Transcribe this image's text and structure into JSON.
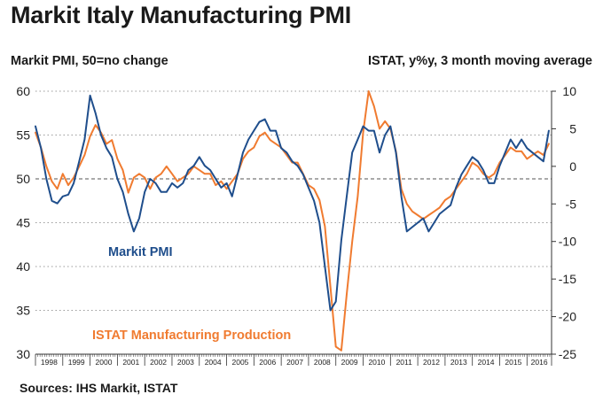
{
  "title": "Markit Italy Manufacturing PMI",
  "left_axis_label": "Markit PMI, 50=no change",
  "right_axis_label": "ISTAT, y%y, 3 month moving average",
  "source": "Sources: IHS Markit, ISTAT",
  "colors": {
    "pmi": "#1f4e8c",
    "istat": "#f07b30",
    "grid": "#9a9a9a",
    "axis": "#333333"
  },
  "chart_data": {
    "type": "line",
    "title": "Markit Italy Manufacturing PMI",
    "x_range": [
      1998.0,
      2016.9
    ],
    "x_tick_labels": [
      "1998",
      "1999",
      "2000",
      "2001",
      "2002",
      "2003",
      "2004",
      "2005",
      "2006",
      "2007",
      "2008",
      "2009",
      "2010",
      "2011",
      "2012",
      "2013",
      "2014",
      "2015",
      "2016"
    ],
    "y_left": {
      "label": "Markit PMI, 50=no change",
      "range": [
        30,
        60
      ],
      "ticks": [
        30,
        35,
        40,
        45,
        50,
        55,
        60
      ]
    },
    "y_right": {
      "label": "ISTAT, y%y, 3 month moving average",
      "range": [
        -25,
        10
      ],
      "ticks": [
        -25,
        -20,
        -15,
        -10,
        -5,
        0,
        5,
        10
      ]
    },
    "reference_line": {
      "axis": "left",
      "value": 50,
      "style": "dashed"
    },
    "gridlines": "dotted horizontal",
    "series": [
      {
        "name": "Markit PMI",
        "annotation": "Markit PMI",
        "axis": "left",
        "x": [
          1998.0,
          1998.2,
          1998.4,
          1998.6,
          1998.8,
          1999.0,
          1999.2,
          1999.4,
          1999.6,
          1999.8,
          2000.0,
          2000.2,
          2000.4,
          2000.6,
          2000.8,
          2001.0,
          2001.2,
          2001.4,
          2001.6,
          2001.8,
          2002.0,
          2002.2,
          2002.4,
          2002.6,
          2002.8,
          2003.0,
          2003.2,
          2003.4,
          2003.6,
          2003.8,
          2004.0,
          2004.2,
          2004.4,
          2004.6,
          2004.8,
          2005.0,
          2005.2,
          2005.4,
          2005.6,
          2005.8,
          2006.0,
          2006.2,
          2006.4,
          2006.6,
          2006.8,
          2007.0,
          2007.2,
          2007.4,
          2007.6,
          2007.8,
          2008.0,
          2008.2,
          2008.4,
          2008.6,
          2008.8,
          2009.0,
          2009.2,
          2009.4,
          2009.6,
          2009.8,
          2010.0,
          2010.2,
          2010.4,
          2010.6,
          2010.8,
          2011.0,
          2011.2,
          2011.4,
          2011.6,
          2011.8,
          2012.0,
          2012.2,
          2012.4,
          2012.6,
          2012.8,
          2013.0,
          2013.2,
          2013.4,
          2013.6,
          2013.8,
          2014.0,
          2014.2,
          2014.4,
          2014.6,
          2014.8,
          2015.0,
          2015.2,
          2015.4,
          2015.6,
          2015.8,
          2016.0,
          2016.2,
          2016.4,
          2016.6,
          2016.8
        ],
        "values": [
          56.0,
          53.5,
          50.0,
          47.5,
          47.2,
          48.0,
          48.2,
          49.5,
          52.0,
          54.5,
          59.5,
          57.5,
          55.0,
          53.5,
          52.5,
          50.0,
          48.5,
          46.0,
          44.0,
          45.5,
          48.5,
          50.0,
          49.5,
          48.5,
          48.5,
          49.5,
          49.0,
          49.5,
          51.0,
          51.5,
          52.5,
          51.5,
          51.0,
          50.0,
          49.0,
          49.5,
          48.0,
          50.5,
          53.0,
          54.5,
          55.5,
          56.5,
          56.8,
          55.5,
          55.5,
          53.5,
          53.0,
          52.0,
          51.5,
          50.5,
          49.0,
          47.5,
          45.0,
          40.0,
          35.0,
          36.0,
          43.0,
          48.0,
          53.0,
          54.5,
          56.0,
          55.5,
          55.5,
          53.0,
          55.0,
          56.0,
          53.0,
          48.0,
          44.0,
          44.5,
          45.0,
          45.5,
          44.0,
          45.0,
          46.0,
          46.5,
          47.0,
          49.0,
          50.5,
          51.5,
          52.5,
          52.0,
          51.0,
          49.5,
          49.5,
          51.5,
          53.0,
          54.5,
          53.5,
          54.5,
          53.5,
          53.0,
          52.5,
          52.0,
          55.5
        ]
      },
      {
        "name": "ISTAT Manufacturing Production",
        "annotation": "ISTAT Manufacturing Production",
        "axis": "right",
        "x": [
          1998.0,
          1998.2,
          1998.4,
          1998.6,
          1998.8,
          1999.0,
          1999.2,
          1999.4,
          1999.6,
          1999.8,
          2000.0,
          2000.2,
          2000.4,
          2000.6,
          2000.8,
          2001.0,
          2001.2,
          2001.4,
          2001.6,
          2001.8,
          2002.0,
          2002.2,
          2002.4,
          2002.6,
          2002.8,
          2003.0,
          2003.2,
          2003.4,
          2003.6,
          2003.8,
          2004.0,
          2004.2,
          2004.4,
          2004.6,
          2004.8,
          2005.0,
          2005.2,
          2005.4,
          2005.6,
          2005.8,
          2006.0,
          2006.2,
          2006.4,
          2006.6,
          2006.8,
          2007.0,
          2007.2,
          2007.4,
          2007.6,
          2007.8,
          2008.0,
          2008.2,
          2008.4,
          2008.6,
          2008.8,
          2009.0,
          2009.2,
          2009.4,
          2009.6,
          2009.8,
          2010.0,
          2010.2,
          2010.4,
          2010.6,
          2010.8,
          2011.0,
          2011.2,
          2011.4,
          2011.6,
          2011.8,
          2012.0,
          2012.2,
          2012.4,
          2012.6,
          2012.8,
          2013.0,
          2013.2,
          2013.4,
          2013.6,
          2013.8,
          2014.0,
          2014.2,
          2014.4,
          2014.6,
          2014.8,
          2015.0,
          2015.2,
          2015.4,
          2015.6,
          2015.8,
          2016.0,
          2016.2,
          2016.4,
          2016.6,
          2016.8
        ],
        "values": [
          4.5,
          2.5,
          0.0,
          -2.0,
          -3.0,
          -1.0,
          -2.5,
          -1.5,
          0.0,
          1.5,
          4.0,
          5.5,
          4.5,
          3.0,
          3.5,
          1.0,
          -0.5,
          -3.5,
          -1.5,
          -1.0,
          -1.5,
          -3.0,
          -1.5,
          -1.0,
          0.0,
          -1.0,
          -2.0,
          -1.5,
          -1.0,
          0.0,
          -0.5,
          -1.0,
          -1.0,
          -2.5,
          -2.0,
          -3.0,
          -2.0,
          -1.0,
          1.0,
          2.0,
          2.5,
          4.0,
          4.5,
          3.5,
          3.0,
          2.5,
          1.5,
          0.5,
          0.5,
          -1.0,
          -2.5,
          -3.0,
          -4.5,
          -8.0,
          -16.0,
          -24.0,
          -24.5,
          -17.0,
          -10.0,
          -4.0,
          4.5,
          10.0,
          8.0,
          5.0,
          6.0,
          5.0,
          2.0,
          -3.0,
          -5.0,
          -6.0,
          -6.5,
          -7.0,
          -6.5,
          -6.0,
          -5.5,
          -4.5,
          -4.0,
          -3.0,
          -2.0,
          -1.0,
          0.5,
          0.0,
          -1.0,
          -1.5,
          -1.0,
          0.5,
          1.5,
          2.5,
          2.0,
          2.0,
          1.0,
          1.5,
          2.0,
          1.5,
          3.0
        ]
      }
    ]
  }
}
